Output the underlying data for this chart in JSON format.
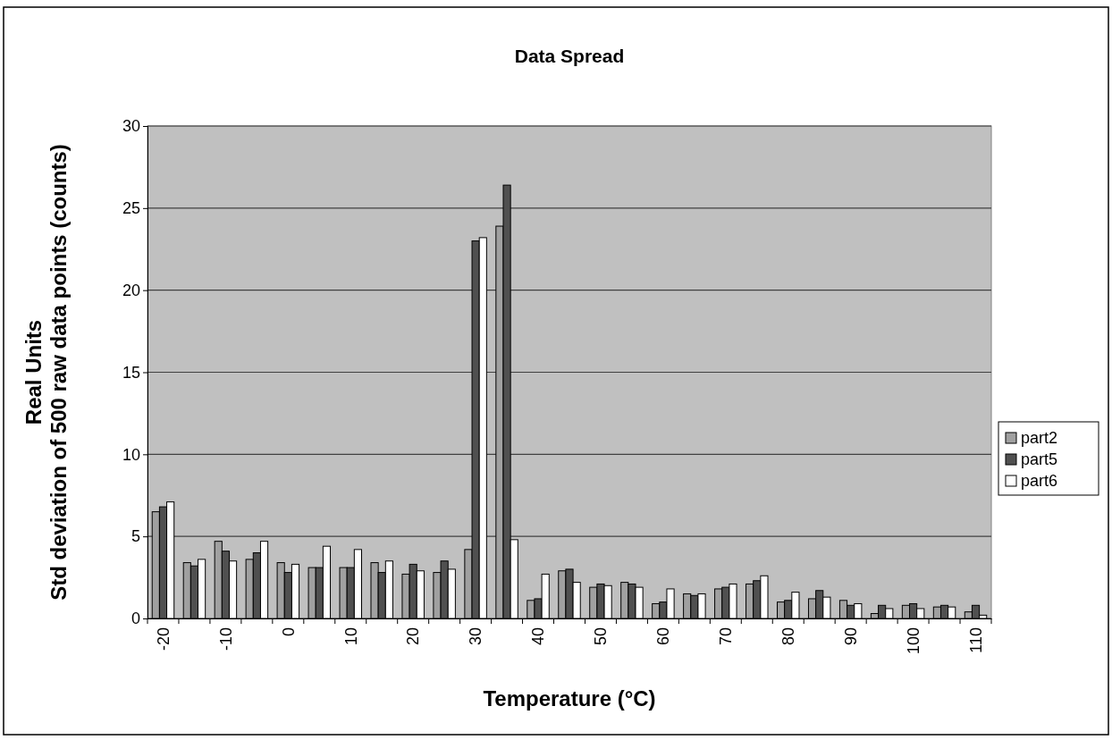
{
  "chart_data": {
    "type": "bar",
    "title": "Data Spread",
    "xlabel": "Temperature (°C)",
    "ylabel": "Real Units\nStd deviation of 500 raw data points (counts)",
    "categories": [
      "-20",
      null,
      "-10",
      null,
      "0",
      null,
      "10",
      null,
      "20",
      null,
      "30",
      null,
      "40",
      null,
      "50",
      null,
      "60",
      null,
      "70",
      null,
      "80",
      null,
      "90",
      null,
      "100",
      null,
      "110"
    ],
    "series": [
      {
        "name": "part2",
        "color": "#a0a0a0",
        "values": [
          6.5,
          3.4,
          4.7,
          3.6,
          3.4,
          3.1,
          3.1,
          3.4,
          2.7,
          2.8,
          4.2,
          23.9,
          1.1,
          2.9,
          1.9,
          2.2,
          0.9,
          1.5,
          1.8,
          2.1,
          1.0,
          1.2,
          1.1,
          0.3,
          0.8,
          0.7,
          0.4
        ]
      },
      {
        "name": "part5",
        "color": "#505050",
        "values": [
          6.8,
          3.2,
          4.1,
          4.0,
          2.8,
          3.1,
          3.1,
          2.8,
          3.3,
          3.5,
          23.0,
          26.4,
          1.2,
          3.0,
          2.1,
          2.1,
          1.0,
          1.4,
          1.9,
          2.3,
          1.1,
          1.7,
          0.8,
          0.8,
          0.9,
          0.8,
          0.8
        ]
      },
      {
        "name": "part6",
        "color": "#ffffff",
        "values": [
          7.1,
          3.6,
          3.5,
          4.7,
          3.3,
          4.4,
          4.2,
          3.5,
          2.9,
          3.0,
          23.2,
          4.8,
          2.7,
          2.2,
          2.0,
          1.9,
          1.8,
          1.5,
          2.1,
          2.6,
          1.6,
          1.3,
          0.9,
          0.6,
          0.6,
          0.7,
          0.2
        ]
      }
    ],
    "ylim": [
      0,
      30
    ],
    "yticks": [
      0,
      5,
      10,
      15,
      20,
      25,
      30
    ],
    "grid": "y",
    "legend": "right"
  }
}
